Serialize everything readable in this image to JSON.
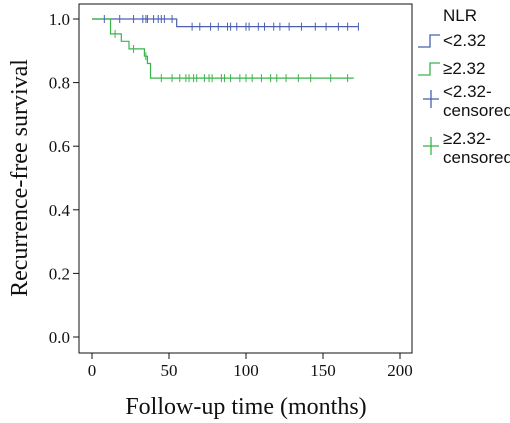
{
  "chart_data": {
    "type": "line",
    "subtype": "kaplan-meier",
    "title": "",
    "xlabel": "Follow-up time (months)",
    "ylabel": "Recurrence-free survival",
    "xlim": [
      0,
      200
    ],
    "ylim": [
      0.0,
      1.0
    ],
    "xticks": [
      "0",
      "50",
      "100",
      "150",
      "200"
    ],
    "yticks": [
      "0.0",
      "0.2",
      "0.4",
      "0.6",
      "0.8",
      "1.0"
    ],
    "grid": false,
    "legend": {
      "title": "NLR",
      "placement": "right",
      "entries": [
        {
          "label": "<2.32",
          "kind": "step",
          "color": "#4a5fb0"
        },
        {
          "label": "≥2.32",
          "kind": "step",
          "color": "#3ab44a"
        },
        {
          "label": "<2.32-",
          "label2": "censored",
          "kind": "cross",
          "color": "#4a5fb0"
        },
        {
          "label": "≥2.32-",
          "label2": "censored",
          "kind": "cross",
          "color": "#3ab44a"
        }
      ]
    },
    "series": [
      {
        "name": "<2.32",
        "color": "#4a5fb0",
        "steps": [
          [
            0,
            1.0
          ],
          [
            55,
            1.0
          ],
          [
            55,
            0.976
          ],
          [
            173,
            0.976
          ]
        ],
        "censored": [
          [
            8,
            1.0
          ],
          [
            18,
            1.0
          ],
          [
            27,
            1.0
          ],
          [
            33,
            1.0
          ],
          [
            35,
            1.0
          ],
          [
            36,
            1.0
          ],
          [
            40,
            1.0
          ],
          [
            43,
            1.0
          ],
          [
            45,
            1.0
          ],
          [
            47,
            1.0
          ],
          [
            52,
            1.0
          ],
          [
            65,
            0.976
          ],
          [
            70,
            0.976
          ],
          [
            77,
            0.976
          ],
          [
            82,
            0.976
          ],
          [
            88,
            0.976
          ],
          [
            90,
            0.976
          ],
          [
            94,
            0.976
          ],
          [
            100,
            0.976
          ],
          [
            102,
            0.976
          ],
          [
            108,
            0.976
          ],
          [
            112,
            0.976
          ],
          [
            118,
            0.976
          ],
          [
            122,
            0.976
          ],
          [
            128,
            0.976
          ],
          [
            136,
            0.976
          ],
          [
            145,
            0.976
          ],
          [
            152,
            0.976
          ],
          [
            160,
            0.976
          ],
          [
            166,
            0.976
          ],
          [
            173,
            0.976
          ]
        ]
      },
      {
        "name": "≥2.32",
        "color": "#3ab44a",
        "steps": [
          [
            0,
            1.0
          ],
          [
            12,
            1.0
          ],
          [
            12,
            0.953
          ],
          [
            19,
            0.953
          ],
          [
            19,
            0.93
          ],
          [
            24,
            0.93
          ],
          [
            24,
            0.906
          ],
          [
            34,
            0.906
          ],
          [
            34,
            0.883
          ],
          [
            36,
            0.883
          ],
          [
            36,
            0.86
          ],
          [
            38,
            0.86
          ],
          [
            38,
            0.814
          ],
          [
            170,
            0.814
          ]
        ],
        "censored": [
          [
            15,
            0.953
          ],
          [
            27,
            0.906
          ],
          [
            35,
            0.883
          ],
          [
            45,
            0.814
          ],
          [
            52,
            0.814
          ],
          [
            57,
            0.814
          ],
          [
            61,
            0.814
          ],
          [
            63,
            0.814
          ],
          [
            66,
            0.814
          ],
          [
            68,
            0.814
          ],
          [
            73,
            0.814
          ],
          [
            76,
            0.814
          ],
          [
            78,
            0.814
          ],
          [
            84,
            0.814
          ],
          [
            86,
            0.814
          ],
          [
            90,
            0.814
          ],
          [
            96,
            0.814
          ],
          [
            100,
            0.814
          ],
          [
            104,
            0.814
          ],
          [
            110,
            0.814
          ],
          [
            116,
            0.814
          ],
          [
            120,
            0.814
          ],
          [
            126,
            0.814
          ],
          [
            134,
            0.814
          ],
          [
            142,
            0.814
          ],
          [
            155,
            0.814
          ],
          [
            166,
            0.814
          ]
        ]
      }
    ]
  }
}
